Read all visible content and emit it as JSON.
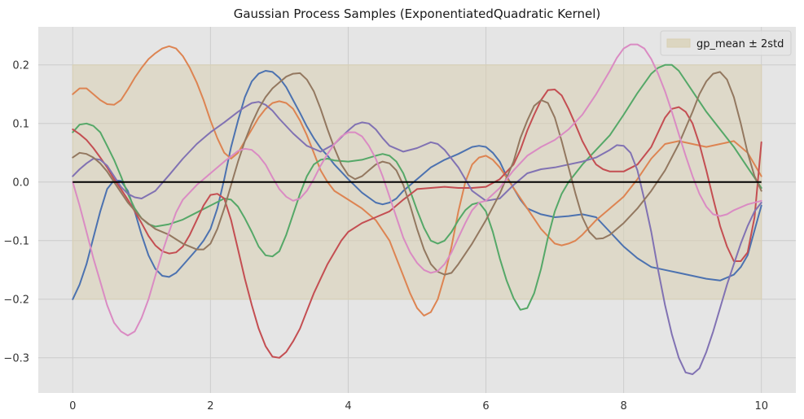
{
  "chart_data": {
    "type": "line",
    "title": "Gaussian Process Samples (ExponentiatedQuadratic Kernel)",
    "xlabel": "",
    "ylabel": "",
    "xlim": [
      -0.5,
      10.5
    ],
    "ylim": [
      -0.36,
      0.265
    ],
    "xticks": [
      0,
      2,
      4,
      6,
      8,
      10
    ],
    "xtick_labels": [
      "0",
      "2",
      "4",
      "6",
      "8",
      "10"
    ],
    "yticks": [
      -0.3,
      -0.2,
      -0.1,
      0.0,
      0.1,
      0.2
    ],
    "ytick_labels": [
      "−0.3",
      "−0.2",
      "−0.1",
      "0.0",
      "0.1",
      "0.2"
    ],
    "grid": true,
    "legend_position": "top-right",
    "band": {
      "label": "gp_mean ± 2std",
      "lower": -0.2,
      "upper": 0.2,
      "x": [
        0,
        10
      ],
      "color": "#d9d0b2"
    },
    "mean": {
      "x": [
        0,
        10
      ],
      "y": [
        0,
        0
      ],
      "color": "#000000"
    },
    "colors": {
      "background": "#e5e5e5",
      "grid": "#cccccc",
      "band": "#d9d0b2"
    },
    "series": [
      {
        "color": "#4c72b0",
        "x": [
          0,
          0.1,
          0.2,
          0.3,
          0.4,
          0.5,
          0.6,
          0.7,
          0.8,
          0.9,
          1.0,
          1.1,
          1.2,
          1.3,
          1.4,
          1.5,
          1.6,
          1.8,
          1.9,
          2.0,
          2.1,
          2.2,
          2.3,
          2.4,
          2.5,
          2.6,
          2.7,
          2.8,
          2.9,
          3.0,
          3.1,
          3.2,
          3.3,
          3.4,
          3.5,
          3.6,
          3.7,
          3.8,
          4.0,
          4.2,
          4.4,
          4.5,
          4.6,
          4.7,
          4.8,
          5.0,
          5.2,
          5.4,
          5.6,
          5.8,
          5.9,
          6.0,
          6.1,
          6.2,
          6.3,
          6.5,
          6.6,
          6.7,
          6.8,
          7.0,
          7.2,
          7.4,
          7.6,
          7.8,
          8.0,
          8.2,
          8.4,
          8.6,
          8.8,
          9.0,
          9.2,
          9.4,
          9.6,
          9.7,
          9.8,
          10.0
        ],
        "y": [
          -0.2,
          -0.175,
          -0.14,
          -0.095,
          -0.05,
          -0.012,
          0.003,
          0.002,
          -0.015,
          -0.05,
          -0.09,
          -0.125,
          -0.148,
          -0.16,
          -0.162,
          -0.155,
          -0.142,
          -0.115,
          -0.1,
          -0.08,
          -0.045,
          0.005,
          0.06,
          0.105,
          0.145,
          0.172,
          0.185,
          0.19,
          0.188,
          0.178,
          0.162,
          0.14,
          0.118,
          0.095,
          0.075,
          0.058,
          0.045,
          0.03,
          0.005,
          -0.018,
          -0.035,
          -0.038,
          -0.035,
          -0.028,
          -0.015,
          0.005,
          0.025,
          0.038,
          0.048,
          0.06,
          0.062,
          0.06,
          0.05,
          0.035,
          0.01,
          -0.03,
          -0.045,
          -0.05,
          -0.055,
          -0.06,
          -0.058,
          -0.055,
          -0.06,
          -0.085,
          -0.11,
          -0.13,
          -0.145,
          -0.15,
          -0.155,
          -0.16,
          -0.165,
          -0.168,
          -0.158,
          -0.145,
          -0.125,
          -0.04
        ]
      },
      {
        "color": "#dd8452",
        "x": [
          0,
          0.1,
          0.2,
          0.3,
          0.4,
          0.5,
          0.6,
          0.7,
          0.8,
          0.9,
          1.0,
          1.1,
          1.2,
          1.3,
          1.4,
          1.5,
          1.6,
          1.7,
          1.8,
          1.9,
          2.0,
          2.1,
          2.2,
          2.3,
          2.4,
          2.5,
          2.6,
          2.7,
          2.8,
          2.9,
          3.0,
          3.1,
          3.2,
          3.3,
          3.4,
          3.5,
          3.6,
          3.7,
          3.8,
          4.0,
          4.2,
          4.4,
          4.6,
          4.7,
          4.8,
          4.9,
          5.0,
          5.1,
          5.2,
          5.3,
          5.4,
          5.5,
          5.6,
          5.7,
          5.8,
          5.9,
          6.0,
          6.1,
          6.2,
          6.4,
          6.6,
          6.8,
          7.0,
          7.1,
          7.2,
          7.3,
          7.4,
          7.6,
          7.8,
          8.0,
          8.2,
          8.4,
          8.6,
          8.8,
          9.0,
          9.2,
          9.4,
          9.6,
          9.8,
          10.0
        ],
        "y": [
          0.15,
          0.16,
          0.16,
          0.15,
          0.14,
          0.133,
          0.132,
          0.14,
          0.158,
          0.178,
          0.195,
          0.21,
          0.22,
          0.228,
          0.232,
          0.228,
          0.215,
          0.195,
          0.17,
          0.14,
          0.105,
          0.075,
          0.05,
          0.04,
          0.05,
          0.07,
          0.09,
          0.11,
          0.125,
          0.135,
          0.138,
          0.135,
          0.125,
          0.105,
          0.08,
          0.05,
          0.02,
          0.0,
          -0.015,
          -0.03,
          -0.045,
          -0.065,
          -0.1,
          -0.13,
          -0.16,
          -0.19,
          -0.215,
          -0.228,
          -0.222,
          -0.2,
          -0.16,
          -0.11,
          -0.05,
          0.0,
          0.03,
          0.042,
          0.045,
          0.038,
          0.025,
          -0.01,
          -0.045,
          -0.08,
          -0.105,
          -0.108,
          -0.105,
          -0.1,
          -0.09,
          -0.065,
          -0.045,
          -0.025,
          0.005,
          0.04,
          0.065,
          0.07,
          0.065,
          0.06,
          0.065,
          0.07,
          0.05,
          0.01
        ]
      },
      {
        "color": "#55a868",
        "x": [
          0,
          0.1,
          0.2,
          0.3,
          0.4,
          0.5,
          0.6,
          0.7,
          0.8,
          0.9,
          1.0,
          1.1,
          1.2,
          1.4,
          1.6,
          1.8,
          2.0,
          2.2,
          2.3,
          2.4,
          2.5,
          2.6,
          2.7,
          2.8,
          2.9,
          3.0,
          3.1,
          3.2,
          3.3,
          3.4,
          3.5,
          3.6,
          3.7,
          3.8,
          4.0,
          4.2,
          4.4,
          4.5,
          4.6,
          4.7,
          4.8,
          4.9,
          5.0,
          5.1,
          5.2,
          5.3,
          5.4,
          5.5,
          5.6,
          5.7,
          5.8,
          5.9,
          6.0,
          6.1,
          6.2,
          6.3,
          6.4,
          6.5,
          6.6,
          6.7,
          6.8,
          6.9,
          7.0,
          7.1,
          7.2,
          7.3,
          7.4,
          7.6,
          7.8,
          8.0,
          8.2,
          8.4,
          8.5,
          8.6,
          8.7,
          8.8,
          9.0,
          9.2,
          9.4,
          9.6,
          9.8,
          10.0
        ],
        "y": [
          0.085,
          0.098,
          0.1,
          0.096,
          0.085,
          0.062,
          0.038,
          0.01,
          -0.02,
          -0.045,
          -0.062,
          -0.072,
          -0.076,
          -0.072,
          -0.064,
          -0.052,
          -0.04,
          -0.028,
          -0.03,
          -0.042,
          -0.062,
          -0.085,
          -0.11,
          -0.125,
          -0.127,
          -0.118,
          -0.09,
          -0.055,
          -0.02,
          0.01,
          0.03,
          0.038,
          0.04,
          0.037,
          0.035,
          0.038,
          0.045,
          0.048,
          0.045,
          0.035,
          0.015,
          -0.015,
          -0.048,
          -0.078,
          -0.1,
          -0.105,
          -0.1,
          -0.085,
          -0.065,
          -0.048,
          -0.038,
          -0.035,
          -0.05,
          -0.085,
          -0.13,
          -0.168,
          -0.198,
          -0.218,
          -0.215,
          -0.19,
          -0.148,
          -0.095,
          -0.05,
          -0.02,
          0.0,
          0.015,
          0.03,
          0.055,
          0.08,
          0.115,
          0.152,
          0.185,
          0.195,
          0.2,
          0.2,
          0.19,
          0.155,
          0.12,
          0.09,
          0.06,
          0.025,
          -0.01
        ]
      },
      {
        "color": "#c44e52",
        "x": [
          0,
          0.1,
          0.2,
          0.3,
          0.4,
          0.5,
          0.6,
          0.7,
          0.8,
          0.9,
          1.0,
          1.1,
          1.2,
          1.3,
          1.4,
          1.5,
          1.6,
          1.7,
          1.8,
          1.9,
          2.0,
          2.1,
          2.2,
          2.3,
          2.4,
          2.5,
          2.6,
          2.7,
          2.8,
          2.9,
          3.0,
          3.1,
          3.2,
          3.3,
          3.4,
          3.5,
          3.6,
          3.7,
          3.8,
          3.9,
          4.0,
          4.2,
          4.4,
          4.6,
          4.8,
          5.0,
          5.2,
          5.4,
          5.6,
          5.8,
          6.0,
          6.2,
          6.4,
          6.5,
          6.6,
          6.7,
          6.8,
          6.9,
          7.0,
          7.1,
          7.2,
          7.3,
          7.4,
          7.5,
          7.6,
          7.7,
          7.8,
          8.0,
          8.2,
          8.4,
          8.6,
          8.7,
          8.8,
          8.9,
          9.0,
          9.1,
          9.2,
          9.3,
          9.4,
          9.5,
          9.6,
          9.7,
          9.8,
          9.9,
          10.0
        ],
        "y": [
          0.09,
          0.082,
          0.072,
          0.058,
          0.042,
          0.025,
          0.005,
          -0.012,
          -0.03,
          -0.05,
          -0.07,
          -0.092,
          -0.108,
          -0.118,
          -0.122,
          -0.12,
          -0.11,
          -0.09,
          -0.065,
          -0.04,
          -0.022,
          -0.02,
          -0.028,
          -0.065,
          -0.115,
          -0.165,
          -0.21,
          -0.25,
          -0.28,
          -0.298,
          -0.3,
          -0.29,
          -0.272,
          -0.25,
          -0.22,
          -0.19,
          -0.165,
          -0.14,
          -0.12,
          -0.1,
          -0.085,
          -0.07,
          -0.06,
          -0.05,
          -0.03,
          -0.012,
          -0.01,
          -0.008,
          -0.01,
          -0.01,
          -0.008,
          0.005,
          0.03,
          0.055,
          0.088,
          0.115,
          0.14,
          0.157,
          0.158,
          0.148,
          0.125,
          0.098,
          0.07,
          0.048,
          0.03,
          0.022,
          0.018,
          0.018,
          0.03,
          0.06,
          0.11,
          0.125,
          0.128,
          0.12,
          0.1,
          0.065,
          0.02,
          -0.028,
          -0.075,
          -0.11,
          -0.135,
          -0.135,
          -0.12,
          -0.06,
          0.068
        ]
      },
      {
        "color": "#8172b3",
        "x": [
          0,
          0.1,
          0.2,
          0.3,
          0.4,
          0.5,
          0.6,
          0.7,
          0.8,
          0.9,
          1.0,
          1.2,
          1.4,
          1.6,
          1.8,
          2.0,
          2.2,
          2.4,
          2.5,
          2.6,
          2.7,
          2.8,
          2.9,
          3.0,
          3.2,
          3.4,
          3.6,
          3.8,
          4.0,
          4.1,
          4.2,
          4.3,
          4.4,
          4.5,
          4.6,
          4.8,
          5.0,
          5.2,
          5.3,
          5.4,
          5.6,
          5.8,
          6.0,
          6.2,
          6.4,
          6.6,
          6.8,
          7.0,
          7.2,
          7.4,
          7.6,
          7.8,
          7.9,
          8.0,
          8.1,
          8.2,
          8.3,
          8.4,
          8.5,
          8.6,
          8.7,
          8.8,
          8.9,
          9.0,
          9.1,
          9.2,
          9.3,
          9.4,
          9.5,
          9.6,
          9.7,
          9.8,
          9.9,
          10.0
        ],
        "y": [
          0.01,
          0.022,
          0.032,
          0.04,
          0.038,
          0.028,
          0.01,
          -0.008,
          -0.02,
          -0.026,
          -0.028,
          -0.015,
          0.012,
          0.04,
          0.065,
          0.085,
          0.102,
          0.12,
          0.128,
          0.135,
          0.137,
          0.132,
          0.122,
          0.108,
          0.083,
          0.062,
          0.052,
          0.065,
          0.088,
          0.098,
          0.102,
          0.1,
          0.09,
          0.075,
          0.062,
          0.052,
          0.058,
          0.068,
          0.065,
          0.055,
          0.025,
          -0.015,
          -0.032,
          -0.028,
          -0.005,
          0.015,
          0.022,
          0.025,
          0.03,
          0.035,
          0.042,
          0.055,
          0.063,
          0.062,
          0.05,
          0.02,
          -0.03,
          -0.085,
          -0.15,
          -0.21,
          -0.26,
          -0.3,
          -0.325,
          -0.328,
          -0.318,
          -0.29,
          -0.255,
          -0.215,
          -0.175,
          -0.14,
          -0.105,
          -0.075,
          -0.05,
          -0.035
        ]
      },
      {
        "color": "#937860",
        "x": [
          0,
          0.1,
          0.2,
          0.3,
          0.4,
          0.5,
          0.6,
          0.8,
          1.0,
          1.2,
          1.4,
          1.6,
          1.8,
          1.9,
          2.0,
          2.1,
          2.2,
          2.3,
          2.4,
          2.5,
          2.6,
          2.7,
          2.8,
          2.9,
          3.0,
          3.1,
          3.2,
          3.3,
          3.4,
          3.5,
          3.6,
          3.7,
          3.8,
          3.9,
          4.0,
          4.1,
          4.2,
          4.3,
          4.4,
          4.5,
          4.6,
          4.7,
          4.8,
          4.9,
          5.0,
          5.1,
          5.2,
          5.3,
          5.4,
          5.5,
          5.6,
          5.8,
          6.0,
          6.2,
          6.4,
          6.5,
          6.6,
          6.7,
          6.8,
          6.9,
          7.0,
          7.1,
          7.2,
          7.3,
          7.4,
          7.5,
          7.6,
          7.7,
          7.8,
          8.0,
          8.2,
          8.4,
          8.6,
          8.8,
          9.0,
          9.1,
          9.2,
          9.3,
          9.4,
          9.5,
          9.6,
          9.7,
          9.8,
          9.9,
          10.0
        ],
        "y": [
          0.042,
          0.05,
          0.048,
          0.042,
          0.032,
          0.018,
          0.0,
          -0.035,
          -0.062,
          -0.08,
          -0.09,
          -0.105,
          -0.115,
          -0.115,
          -0.105,
          -0.08,
          -0.045,
          -0.005,
          0.035,
          0.07,
          0.1,
          0.125,
          0.145,
          0.16,
          0.17,
          0.18,
          0.185,
          0.186,
          0.175,
          0.155,
          0.125,
          0.09,
          0.058,
          0.03,
          0.012,
          0.005,
          0.01,
          0.02,
          0.03,
          0.035,
          0.032,
          0.02,
          -0.005,
          -0.04,
          -0.08,
          -0.115,
          -0.14,
          -0.153,
          -0.158,
          -0.155,
          -0.14,
          -0.105,
          -0.065,
          -0.02,
          0.035,
          0.075,
          0.105,
          0.13,
          0.14,
          0.135,
          0.11,
          0.07,
          0.025,
          -0.02,
          -0.06,
          -0.085,
          -0.097,
          -0.096,
          -0.09,
          -0.07,
          -0.045,
          -0.015,
          0.02,
          0.065,
          0.12,
          0.15,
          0.172,
          0.185,
          0.188,
          0.175,
          0.145,
          0.1,
          0.05,
          0.01,
          -0.015
        ]
      },
      {
        "color": "#da8bc3",
        "x": [
          0,
          0.1,
          0.2,
          0.3,
          0.4,
          0.5,
          0.6,
          0.7,
          0.8,
          0.9,
          1.0,
          1.1,
          1.2,
          1.3,
          1.4,
          1.5,
          1.6,
          1.8,
          2.0,
          2.2,
          2.4,
          2.5,
          2.6,
          2.7,
          2.8,
          2.9,
          3.0,
          3.1,
          3.2,
          3.3,
          3.4,
          3.5,
          3.6,
          3.7,
          3.8,
          3.9,
          4.0,
          4.1,
          4.2,
          4.3,
          4.4,
          4.5,
          4.6,
          4.7,
          4.8,
          4.9,
          5.0,
          5.1,
          5.2,
          5.3,
          5.4,
          5.5,
          5.6,
          5.7,
          5.8,
          5.9,
          6.0,
          6.2,
          6.4,
          6.6,
          6.8,
          7.0,
          7.2,
          7.4,
          7.6,
          7.8,
          7.9,
          8.0,
          8.1,
          8.2,
          8.3,
          8.4,
          8.5,
          8.6,
          8.7,
          8.8,
          8.9,
          9.0,
          9.1,
          9.2,
          9.3,
          9.4,
          9.5,
          9.6,
          9.8,
          10.0
        ],
        "y": [
          0.0,
          -0.04,
          -0.085,
          -0.13,
          -0.17,
          -0.21,
          -0.24,
          -0.255,
          -0.262,
          -0.255,
          -0.232,
          -0.2,
          -0.16,
          -0.12,
          -0.085,
          -0.052,
          -0.03,
          -0.005,
          0.015,
          0.035,
          0.053,
          0.057,
          0.055,
          0.045,
          0.03,
          0.008,
          -0.012,
          -0.025,
          -0.032,
          -0.028,
          -0.015,
          0.005,
          0.028,
          0.048,
          0.065,
          0.078,
          0.085,
          0.085,
          0.078,
          0.062,
          0.04,
          0.01,
          -0.025,
          -0.06,
          -0.095,
          -0.12,
          -0.138,
          -0.15,
          -0.155,
          -0.152,
          -0.14,
          -0.12,
          -0.095,
          -0.07,
          -0.048,
          -0.035,
          -0.032,
          -0.01,
          0.02,
          0.045,
          0.06,
          0.072,
          0.09,
          0.115,
          0.15,
          0.19,
          0.212,
          0.228,
          0.235,
          0.235,
          0.228,
          0.21,
          0.185,
          0.155,
          0.12,
          0.082,
          0.045,
          0.01,
          -0.02,
          -0.042,
          -0.055,
          -0.058,
          -0.055,
          -0.048,
          -0.038,
          -0.032
        ]
      }
    ]
  }
}
